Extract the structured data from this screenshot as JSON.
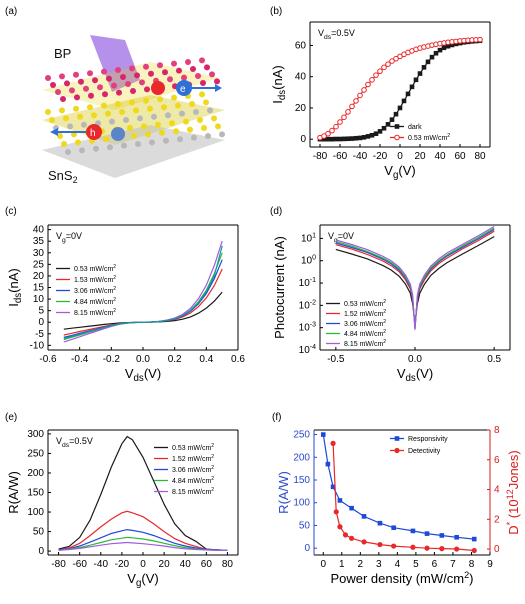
{
  "panels": {
    "a": {
      "label": "(a)",
      "bp": "BP",
      "sns2": "SnS",
      "sns2_sub": "2",
      "electron": "e",
      "hole": "h"
    },
    "b": {
      "label": "(b)"
    },
    "c": {
      "label": "(c)"
    },
    "d": {
      "label": "(d)"
    },
    "e": {
      "label": "(e)"
    },
    "f": {
      "label": "(f)"
    }
  },
  "colors": {
    "black": "#1a1a1a",
    "red": "#e8282b",
    "blue": "#1f49d8",
    "teal": "#139aa0",
    "green": "#2db83a",
    "purple": "#a25ae0",
    "axis_blue": "#2a49c8",
    "axis_red": "#d81b1b"
  },
  "chart_data": [
    {
      "id": "b",
      "type": "line",
      "annotation": {
        "main": "V",
        "sub": "ds",
        "rest": "=0.5V"
      },
      "xlabel": {
        "main": "V",
        "sub": "g",
        "rest": "(V)"
      },
      "ylabel": {
        "main": "I",
        "sub": "ds",
        "rest": "(nA)"
      },
      "xlim": [
        -90,
        90
      ],
      "ylim": [
        -5,
        75
      ],
      "xticks": [
        -80,
        -60,
        -40,
        -20,
        0,
        20,
        40,
        60,
        80
      ],
      "yticks": [
        0,
        20,
        40,
        60
      ],
      "legend_position": "bottom-right",
      "series": [
        {
          "name": "dark",
          "color": "#1a1a1a",
          "marker": "square",
          "x": [
            -80,
            -76,
            -72,
            -68,
            -64,
            -60,
            -56,
            -52,
            -48,
            -44,
            -40,
            -36,
            -32,
            -28,
            -24,
            -20,
            -16,
            -12,
            -8,
            -4,
            0,
            4,
            8,
            12,
            16,
            20,
            24,
            28,
            32,
            36,
            40,
            44,
            48,
            52,
            56,
            60,
            64,
            68,
            72,
            76,
            80
          ],
          "y": [
            0,
            0,
            0,
            0,
            0.1,
            0.1,
            0.2,
            0.3,
            0.4,
            0.6,
            0.8,
            1.2,
            1.8,
            2.5,
            3.5,
            5,
            7,
            9.5,
            12.5,
            16,
            20,
            24.5,
            29,
            33.5,
            38,
            42,
            46,
            49.5,
            52.5,
            55,
            57,
            58.5,
            59.5,
            60.3,
            61,
            61.5,
            62,
            62.3,
            62.6,
            62.8,
            63
          ]
        },
        {
          "name": "0.53 mW/cm",
          "name_sup": "2",
          "color": "#e8282b",
          "marker": "circle-open",
          "x": [
            -80,
            -76,
            -72,
            -68,
            -64,
            -60,
            -56,
            -52,
            -48,
            -44,
            -40,
            -36,
            -32,
            -28,
            -24,
            -20,
            -16,
            -12,
            -8,
            -4,
            0,
            4,
            8,
            12,
            16,
            20,
            24,
            28,
            32,
            36,
            40,
            44,
            48,
            52,
            56,
            60,
            64,
            68,
            72,
            76,
            80
          ],
          "y": [
            1,
            2,
            3.5,
            5.5,
            8,
            11,
            14,
            17.5,
            21,
            24.5,
            28,
            31.5,
            35,
            38,
            41,
            43.5,
            46,
            48,
            50,
            51.5,
            53,
            54.3,
            55.5,
            56.5,
            57.5,
            58.3,
            59,
            59.6,
            60.2,
            60.7,
            61.2,
            61.6,
            62,
            62.3,
            62.6,
            62.9,
            63.1,
            63.3,
            63.5,
            63.6,
            63.7
          ]
        }
      ]
    },
    {
      "id": "c",
      "type": "line",
      "annotation": {
        "main": "V",
        "sub": "g",
        "rest": "=0V"
      },
      "xlabel": {
        "main": "V",
        "sub": "ds",
        "rest": "(V)"
      },
      "ylabel": {
        "main": "I",
        "sub": "ds",
        "rest": "(nA)"
      },
      "xlim": [
        -0.6,
        0.6
      ],
      "ylim": [
        -12,
        42
      ],
      "xticks": [
        -0.6,
        -0.4,
        -0.2,
        0.0,
        0.2,
        0.4,
        0.6
      ],
      "yticks": [
        -10,
        -5,
        0,
        5,
        10,
        15,
        20,
        25,
        30,
        35,
        40
      ],
      "legend_position": "left",
      "x": [
        -0.5,
        -0.45,
        -0.4,
        -0.35,
        -0.3,
        -0.25,
        -0.2,
        -0.15,
        -0.1,
        -0.05,
        0,
        0.05,
        0.1,
        0.15,
        0.2,
        0.25,
        0.3,
        0.35,
        0.4,
        0.45,
        0.5
      ],
      "series": [
        {
          "name": "0.53 mW/cm",
          "name_sup": "2",
          "color": "#1a1a1a",
          "y": [
            -3,
            -2.6,
            -2.2,
            -1.8,
            -1.4,
            -1.0,
            -0.65,
            -0.35,
            -0.15,
            -0.05,
            0,
            0.05,
            0.15,
            0.35,
            0.7,
            1.3,
            2.3,
            3.9,
            6.1,
            9.1,
            13
          ]
        },
        {
          "name": "1.53 mW/cm",
          "name_sup": "2",
          "color": "#e8282b",
          "y": [
            -5.5,
            -4.8,
            -4.0,
            -3.3,
            -2.6,
            -1.9,
            -1.2,
            -0.6,
            -0.25,
            -0.08,
            0,
            0.08,
            0.25,
            0.6,
            1.2,
            2.3,
            4.0,
            6.7,
            10.5,
            15.8,
            23
          ]
        },
        {
          "name": "3.06 mW/cm",
          "name_sup": "2",
          "color": "#1f49d8",
          "y": [
            -6.5,
            -5.7,
            -4.8,
            -3.9,
            -3.1,
            -2.2,
            -1.4,
            -0.7,
            -0.3,
            -0.1,
            0,
            0.1,
            0.3,
            0.7,
            1.4,
            2.7,
            4.7,
            7.9,
            12.4,
            18.8,
            27
          ]
        },
        {
          "name": "4.84 mW/cm",
          "name_sup": "2",
          "color": "#2db83a",
          "y": [
            -7.5,
            -6.5,
            -5.5,
            -4.5,
            -3.5,
            -2.5,
            -1.6,
            -0.8,
            -0.33,
            -0.1,
            0,
            0.1,
            0.33,
            0.8,
            1.6,
            3.0,
            5.2,
            8.8,
            13.8,
            21,
            30
          ]
        },
        {
          "name": "8.15 mW/cm",
          "name_sup": "2",
          "color": "#a25ae0",
          "y": [
            -8.5,
            -7.4,
            -6.3,
            -5.1,
            -4.0,
            -2.9,
            -1.8,
            -0.9,
            -0.38,
            -0.12,
            0,
            0.12,
            0.38,
            0.9,
            1.8,
            3.4,
            6.0,
            10.1,
            16,
            24.5,
            35
          ]
        },
        {
          "name": "",
          "color": "#139aa0",
          "y": [
            -7.0,
            -6.1,
            -5.2,
            -4.2,
            -3.3,
            -2.4,
            -1.5,
            -0.75,
            -0.32,
            -0.1,
            0,
            0.1,
            0.32,
            0.75,
            1.5,
            2.9,
            5.0,
            8.4,
            13.2,
            20,
            33
          ]
        }
      ]
    },
    {
      "id": "d",
      "type": "line",
      "annotation": {
        "main": "V",
        "sub": "g",
        "rest": "=0V"
      },
      "xlabel": {
        "main": "V",
        "sub": "ds",
        "rest": "(V)"
      },
      "ylabel": {
        "main": "Photocurrent (nA)"
      },
      "xlim": [
        -0.6,
        0.6
      ],
      "yscale": "log",
      "ylim_exp": [
        -4,
        1.6
      ],
      "xticks": [
        -0.5,
        0.0,
        0.5
      ],
      "yticks_exp": [
        -4,
        -3,
        -2,
        -1,
        0,
        1
      ],
      "legend_position": "bottom-left",
      "x": [
        -0.5,
        -0.4,
        -0.3,
        -0.2,
        -0.15,
        -0.1,
        -0.06,
        -0.03,
        -0.015,
        0,
        0.015,
        0.03,
        0.06,
        0.1,
        0.15,
        0.2,
        0.3,
        0.4,
        0.5
      ],
      "series": [
        {
          "name": "0.53 mW/cm",
          "name_sup": "2",
          "color": "#1a1a1a",
          "y": [
            3.2,
            2.0,
            1.2,
            0.6,
            0.38,
            0.2,
            0.09,
            0.035,
            0.012,
            0.0015,
            0.012,
            0.035,
            0.09,
            0.22,
            0.45,
            0.8,
            2.0,
            4.8,
            12
          ]
        },
        {
          "name": "1.52 mW/cm",
          "name_sup": "2",
          "color": "#e8282b",
          "y": [
            5.2,
            3.3,
            1.9,
            0.95,
            0.6,
            0.32,
            0.14,
            0.055,
            0.018,
            0.0012,
            0.018,
            0.055,
            0.14,
            0.35,
            0.75,
            1.3,
            3.4,
            8.0,
            21
          ]
        },
        {
          "name": "3.06 mW/cm",
          "name_sup": "2",
          "color": "#1f49d8",
          "y": [
            6.2,
            3.9,
            2.3,
            1.15,
            0.72,
            0.38,
            0.17,
            0.065,
            0.022,
            0.001,
            0.022,
            0.065,
            0.17,
            0.42,
            0.9,
            1.6,
            4.0,
            9.5,
            25
          ]
        },
        {
          "name": "4.84 mW/cm",
          "name_sup": "2",
          "color": "#2db83a",
          "y": [
            7.2,
            4.5,
            2.6,
            1.3,
            0.82,
            0.44,
            0.19,
            0.075,
            0.025,
            0.0009,
            0.025,
            0.075,
            0.19,
            0.48,
            1.0,
            1.8,
            4.6,
            11,
            29
          ]
        },
        {
          "name": "8.15 mW/cm",
          "name_sup": "2",
          "color": "#a25ae0",
          "y": [
            8.5,
            5.3,
            3.1,
            1.55,
            0.98,
            0.52,
            0.23,
            0.09,
            0.03,
            0.0008,
            0.03,
            0.09,
            0.23,
            0.57,
            1.2,
            2.2,
            5.4,
            13,
            34
          ]
        }
      ]
    },
    {
      "id": "e",
      "type": "line",
      "annotation": {
        "main": "V",
        "sub": "ds",
        "rest": "=0.5V"
      },
      "xlabel": {
        "main": "V",
        "sub": "g",
        "rest": "(V)"
      },
      "ylabel": {
        "main": "R(A/W)"
      },
      "xlim": [
        -90,
        90
      ],
      "ylim": [
        -10,
        310
      ],
      "xticks": [
        -80,
        -60,
        -40,
        -20,
        0,
        20,
        40,
        60,
        80
      ],
      "yticks": [
        0,
        50,
        100,
        150,
        200,
        250,
        300
      ],
      "legend_position": "top-right",
      "x": [
        -80,
        -70,
        -60,
        -50,
        -40,
        -30,
        -20,
        -15,
        -10,
        0,
        10,
        20,
        30,
        40,
        50,
        60,
        70,
        80
      ],
      "series": [
        {
          "name": "0.53 mW/cm",
          "name_sup": "2",
          "color": "#1a1a1a",
          "y": [
            5,
            12,
            35,
            80,
            145,
            215,
            275,
            293,
            285,
            240,
            180,
            120,
            70,
            40,
            25,
            5,
            3,
            2
          ]
        },
        {
          "name": "1.52 mW/cm",
          "name_sup": "2",
          "color": "#e8282b",
          "y": [
            3,
            8,
            20,
            40,
            62,
            82,
            98,
            102,
            98,
            88,
            70,
            50,
            32,
            20,
            12,
            4,
            3,
            2
          ]
        },
        {
          "name": "3.06 mW/cm",
          "name_sup": "2",
          "color": "#1f49d8",
          "y": [
            3,
            6,
            13,
            23,
            34,
            45,
            52,
            55,
            53,
            48,
            40,
            30,
            20,
            13,
            8,
            4,
            3,
            2
          ]
        },
        {
          "name": "4.84 mW/cm",
          "name_sup": "2",
          "color": "#2db83a",
          "y": [
            2,
            5,
            9,
            15,
            22,
            29,
            33,
            35,
            34,
            31,
            26,
            20,
            14,
            9,
            6,
            3,
            2,
            2
          ]
        },
        {
          "name": "8.15 mW/cm",
          "name_sup": "2",
          "color": "#a25ae0",
          "y": [
            2,
            4,
            7,
            11,
            15,
            19,
            21,
            22,
            21,
            19,
            16,
            13,
            9,
            6,
            4,
            3,
            2,
            2
          ]
        }
      ]
    },
    {
      "id": "f",
      "type": "line",
      "xlabel": {
        "main": "Power density (mW/cm",
        "sup": "2",
        "rest": ")"
      },
      "ylabel": {
        "main": "R(A/W)"
      },
      "ylabel_right": {
        "main": "D",
        "sup": "*",
        "rest": " (10",
        "sup2": "12",
        "rest2": "Jones)"
      },
      "xlim": [
        -0.5,
        9
      ],
      "ylim": [
        -15,
        260
      ],
      "ylim_right": [
        -0.4,
        8
      ],
      "xticks": [
        0,
        1,
        2,
        3,
        4,
        5,
        6,
        7,
        8,
        9
      ],
      "yticks": [
        0,
        50,
        100,
        150,
        200,
        250
      ],
      "yticks_right": [
        0,
        2,
        4,
        6,
        8
      ],
      "legend_position": "top-right",
      "series": [
        {
          "name": "Responsivity",
          "color": "#1f49d8",
          "marker": "square",
          "axis": "left",
          "x": [
            0,
            0.25,
            0.53,
            0.9,
            1.53,
            2.2,
            3.06,
            3.8,
            4.84,
            5.6,
            6.4,
            7.2,
            8.15
          ],
          "y": [
            250,
            185,
            135,
            105,
            88,
            70,
            55,
            45,
            38,
            32,
            28,
            24,
            20
          ]
        },
        {
          "name": "Detectivity",
          "color": "#e8282b",
          "marker": "circle",
          "axis": "right",
          "x": [
            0.53,
            0.7,
            0.9,
            1.2,
            1.53,
            2.2,
            3.06,
            3.8,
            4.84,
            5.6,
            6.4,
            7.2,
            8.15
          ],
          "y": [
            7.1,
            2.5,
            1.5,
            0.95,
            0.72,
            0.48,
            0.3,
            0.2,
            0.12,
            0.06,
            0.03,
            0.0,
            -0.1
          ]
        }
      ]
    }
  ]
}
